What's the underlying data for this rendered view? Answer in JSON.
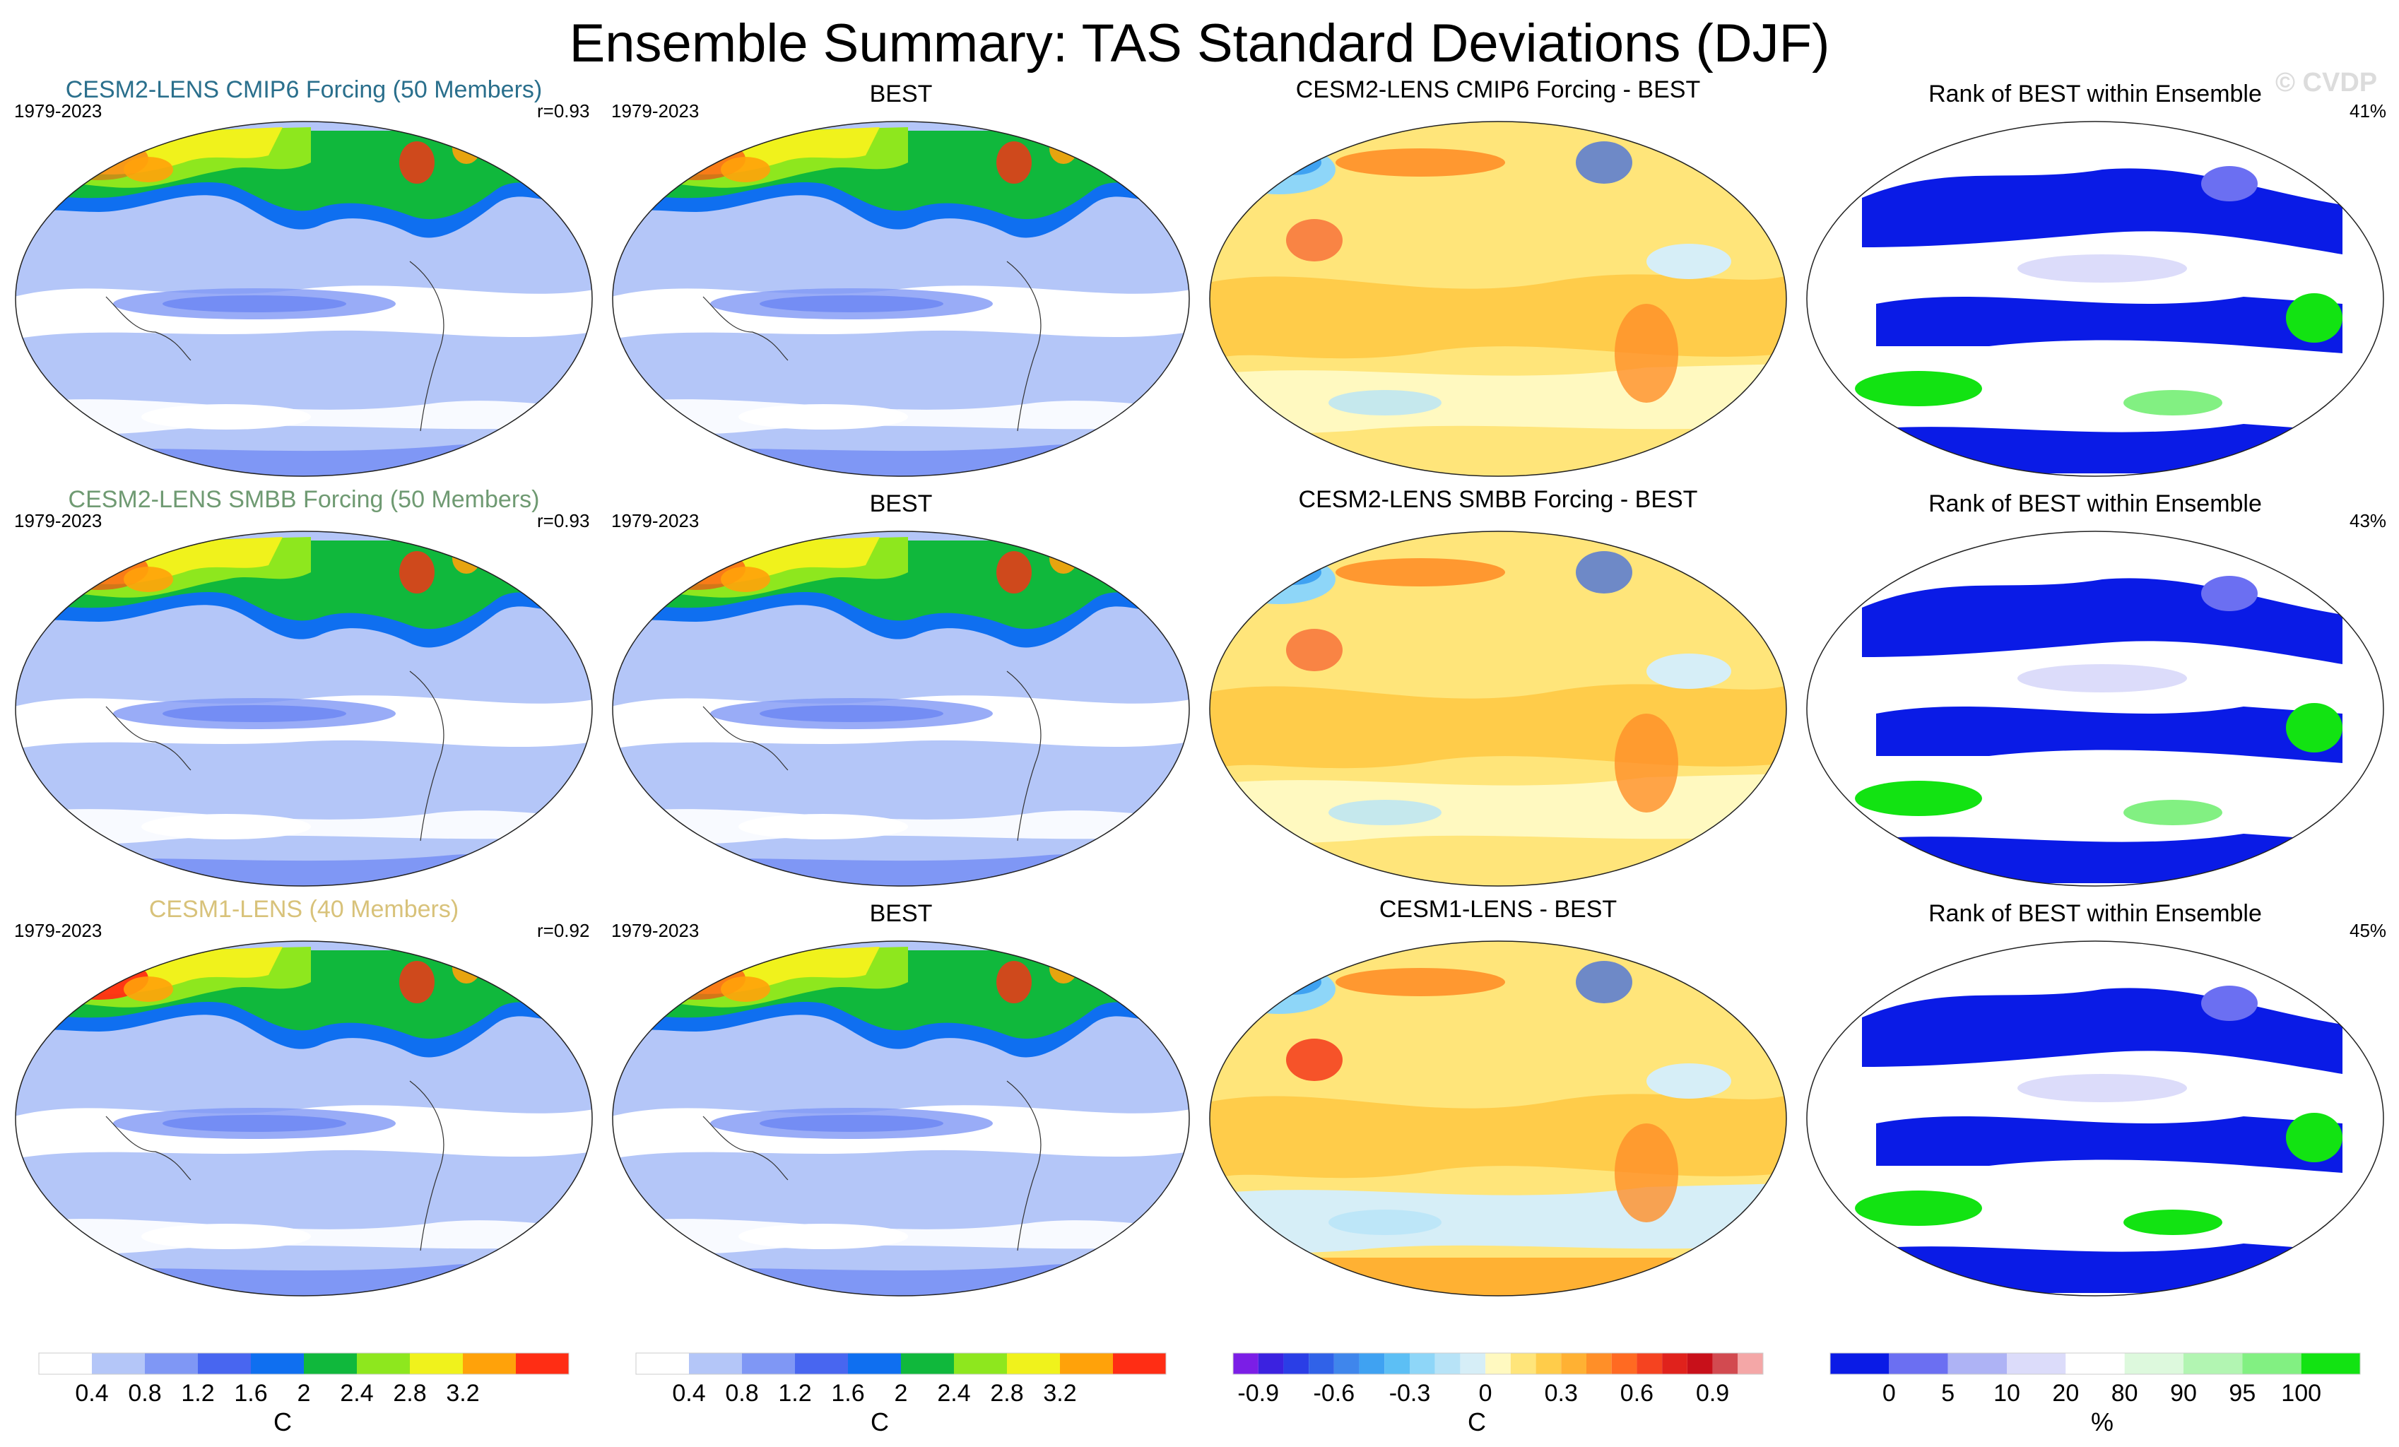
{
  "title": "Ensemble Summary: TAS Standard Deviations (DJF)",
  "watermark": "© CVDP",
  "rows": [
    {
      "model_title": "CESM2-LENS CMIP6 Forcing (50 Members)",
      "model_title_color": "#2a6f8c",
      "years": "1979-2023",
      "corr": "r=0.93",
      "obs_title": "BEST",
      "obs_years": "1979-2023",
      "diff_title": "CESM2-LENS CMIP6 Forcing - BEST",
      "rank_title": "Rank of BEST within Ensemble",
      "rank_pct": "41%"
    },
    {
      "model_title": "CESM2-LENS SMBB Forcing (50 Members)",
      "model_title_color": "#6f9a72",
      "years": "1979-2023",
      "corr": "r=0.93",
      "obs_title": "BEST",
      "obs_years": "1979-2023",
      "diff_title": "CESM2-LENS SMBB Forcing - BEST",
      "rank_title": "Rank of BEST within Ensemble",
      "rank_pct": "43%"
    },
    {
      "model_title": "CESM1-LENS (40 Members)",
      "model_title_color": "#d8c27a",
      "years": "1979-2023",
      "corr": "r=0.92",
      "obs_title": "BEST",
      "obs_years": "1979-2023",
      "diff_title": "CESM1-LENS - BEST",
      "rank_title": "Rank of BEST within Ensemble",
      "rank_pct": "45%"
    }
  ],
  "colorbars": [
    {
      "name": "stddev-model",
      "colors": [
        "#ffffff",
        "#b4c6f8",
        "#7f97f5",
        "#4866f0",
        "#0f6ff0",
        "#10b83c",
        "#8ee71e",
        "#f0f21c",
        "#ffa20a",
        "#ff2d14"
      ],
      "tick_labels": [
        "0.4",
        "0.8",
        "1.2",
        "1.6",
        "2",
        "2.4",
        "2.8",
        "3.2"
      ],
      "unit": "C"
    },
    {
      "name": "stddev-obs",
      "colors": [
        "#ffffff",
        "#b4c6f8",
        "#7f97f5",
        "#4866f0",
        "#0f6ff0",
        "#10b83c",
        "#8ee71e",
        "#f0f21c",
        "#ffa20a",
        "#ff2d14"
      ],
      "tick_labels": [
        "0.4",
        "0.8",
        "1.2",
        "1.6",
        "2",
        "2.4",
        "2.8",
        "3.2"
      ],
      "unit": "C"
    },
    {
      "name": "difference",
      "colors": [
        "#7b1ee6",
        "#3b22e0",
        "#2a3ee6",
        "#3062e8",
        "#3f86ec",
        "#3fa2f2",
        "#5cbff5",
        "#8ed6f8",
        "#b7e3f7",
        "#d6eef7",
        "#fff9c0",
        "#ffe57a",
        "#ffcc4a",
        "#ffb133",
        "#ff8f28",
        "#ff6a22",
        "#f54320",
        "#e0221c",
        "#c8101a",
        "#d24a50",
        "#f4a7a7"
      ],
      "tick_labels": [
        "-0.9",
        "-0.6",
        "-0.3",
        "0",
        "0.3",
        "0.6",
        "0.9"
      ],
      "unit": "C"
    },
    {
      "name": "rank",
      "colors": [
        "#0a1be6",
        "#6b6ff2",
        "#aeb3f5",
        "#dcdcfa",
        "#ffffff",
        "#ddf9dd",
        "#b2f5b2",
        "#82f082",
        "#12e312"
      ],
      "tick_labels": [
        "0",
        "5",
        "10",
        "20",
        "80",
        "90",
        "95",
        "100"
      ],
      "unit": "%"
    }
  ]
}
